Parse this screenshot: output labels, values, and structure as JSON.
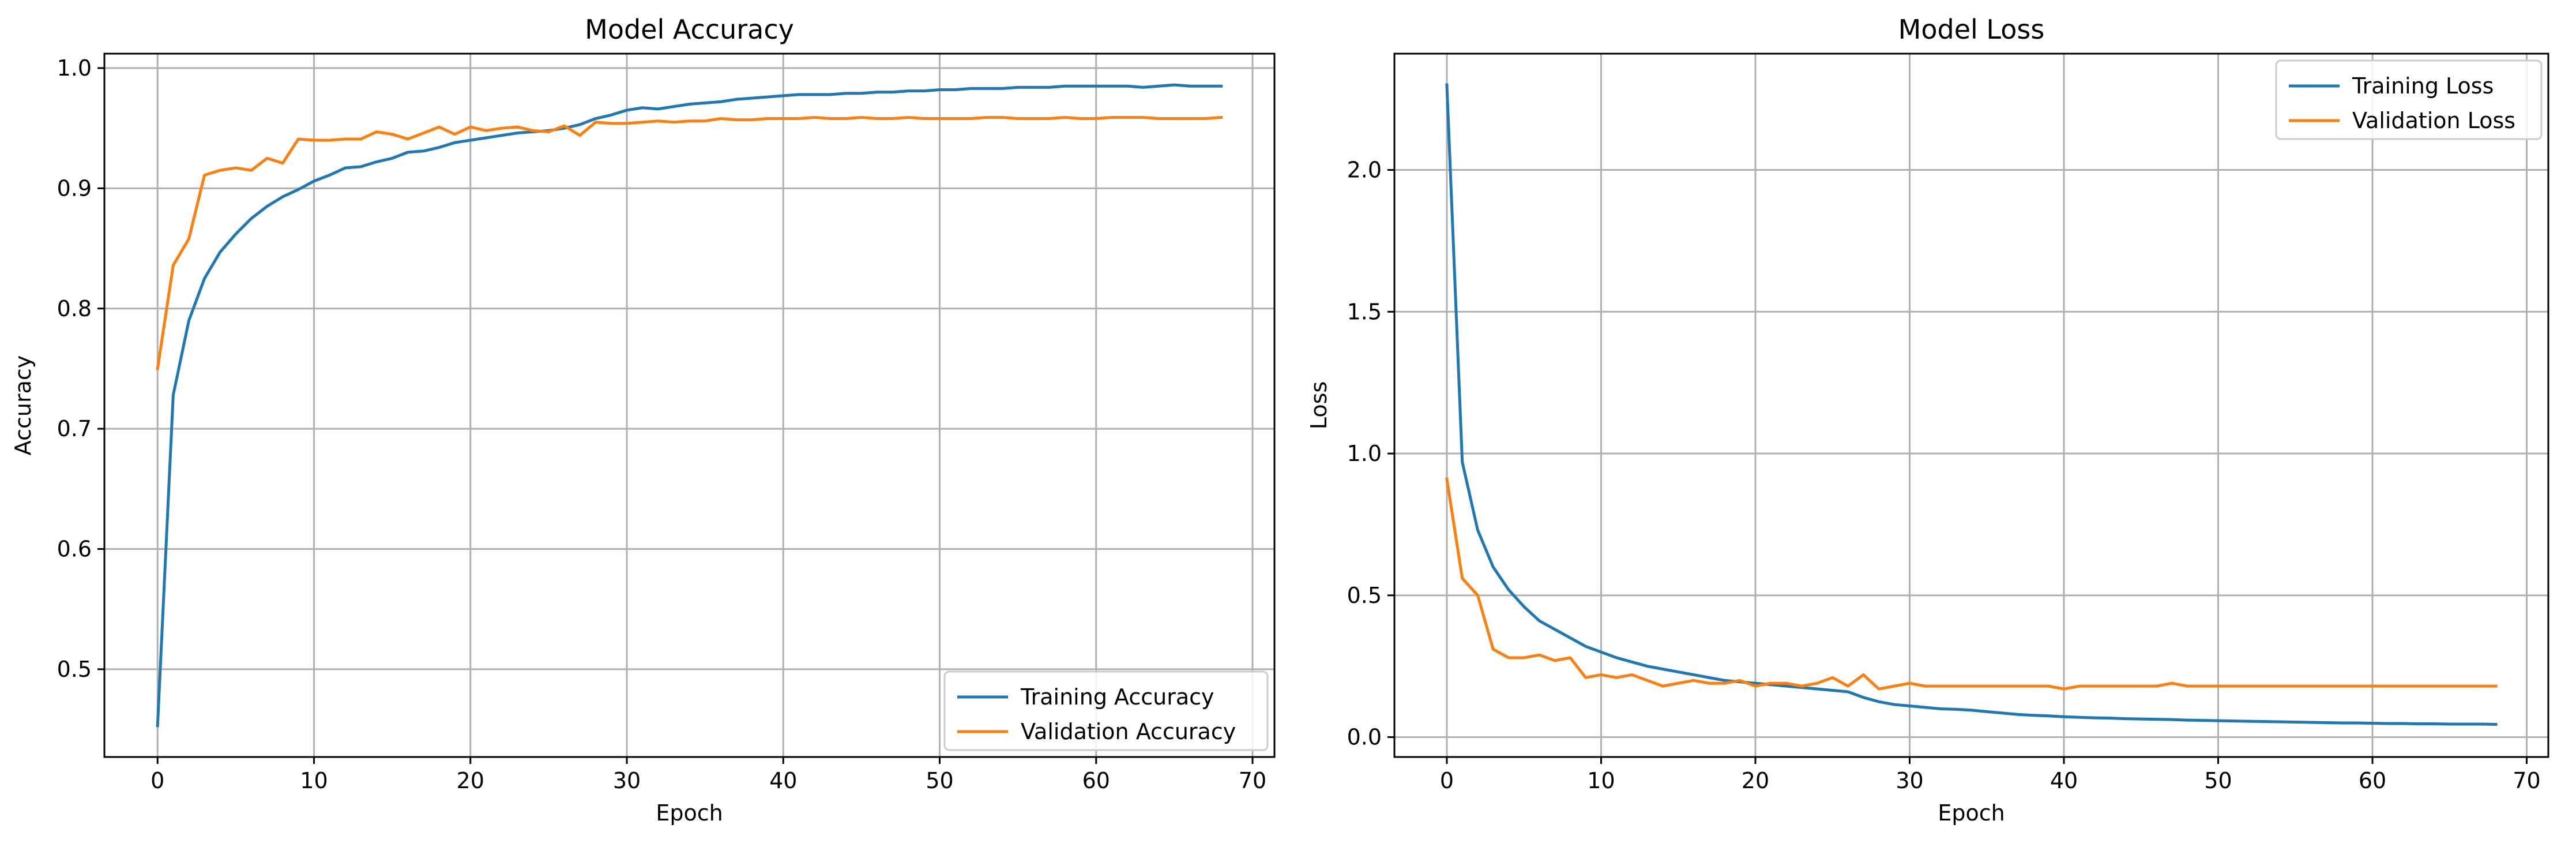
{
  "chart_data": [
    {
      "type": "line",
      "title": "Model Accuracy",
      "xlabel": "Epoch",
      "ylabel": "Accuracy",
      "xlim": [
        -3.4,
        71.4
      ],
      "ylim": [
        0.427,
        1.012
      ],
      "xticks": [
        0,
        10,
        20,
        30,
        40,
        50,
        60,
        70
      ],
      "yticks": [
        0.5,
        0.6,
        0.7,
        0.8,
        0.9,
        1.0
      ],
      "xtick_labels": [
        "0",
        "10",
        "20",
        "30",
        "40",
        "50",
        "60",
        "70"
      ],
      "ytick_labels": [
        "0.5",
        "0.6",
        "0.7",
        "0.8",
        "0.9",
        "1.0"
      ],
      "grid": true,
      "legend_position": "lower right",
      "series": [
        {
          "name": "Training Accuracy",
          "color": "#1f77b4",
          "values": [
            0.453,
            0.728,
            0.79,
            0.825,
            0.847,
            0.862,
            0.875,
            0.885,
            0.893,
            0.899,
            0.906,
            0.911,
            0.917,
            0.918,
            0.922,
            0.925,
            0.93,
            0.931,
            0.934,
            0.938,
            0.94,
            0.942,
            0.944,
            0.946,
            0.947,
            0.948,
            0.95,
            0.953,
            0.958,
            0.961,
            0.965,
            0.967,
            0.966,
            0.968,
            0.97,
            0.971,
            0.972,
            0.974,
            0.975,
            0.976,
            0.977,
            0.978,
            0.978,
            0.978,
            0.979,
            0.979,
            0.98,
            0.98,
            0.981,
            0.981,
            0.982,
            0.982,
            0.983,
            0.983,
            0.983,
            0.984,
            0.984,
            0.984,
            0.985,
            0.985,
            0.985,
            0.985,
            0.985,
            0.984,
            0.985,
            0.986,
            0.985,
            0.985,
            0.985
          ]
        },
        {
          "name": "Validation Accuracy",
          "color": "#ff7f0e",
          "values": [
            0.75,
            0.836,
            0.858,
            0.911,
            0.915,
            0.917,
            0.915,
            0.925,
            0.921,
            0.941,
            0.94,
            0.94,
            0.941,
            0.941,
            0.947,
            0.945,
            0.941,
            0.946,
            0.951,
            0.945,
            0.951,
            0.948,
            0.95,
            0.951,
            0.948,
            0.947,
            0.952,
            0.944,
            0.955,
            0.954,
            0.954,
            0.955,
            0.956,
            0.955,
            0.956,
            0.956,
            0.958,
            0.957,
            0.957,
            0.958,
            0.958,
            0.958,
            0.959,
            0.958,
            0.958,
            0.959,
            0.958,
            0.958,
            0.959,
            0.958,
            0.958,
            0.958,
            0.958,
            0.959,
            0.959,
            0.958,
            0.958,
            0.958,
            0.959,
            0.958,
            0.958,
            0.959,
            0.959,
            0.959,
            0.958,
            0.958,
            0.958,
            0.958,
            0.959
          ]
        }
      ]
    },
    {
      "type": "line",
      "title": "Model Loss",
      "xlabel": "Epoch",
      "ylabel": "Loss",
      "xlim": [
        -3.4,
        71.4
      ],
      "ylim": [
        -0.07,
        2.41
      ],
      "xticks": [
        0,
        10,
        20,
        30,
        40,
        50,
        60,
        70
      ],
      "yticks": [
        0.0,
        0.5,
        1.0,
        1.5,
        2.0
      ],
      "xtick_labels": [
        "0",
        "10",
        "20",
        "30",
        "40",
        "50",
        "60",
        "70"
      ],
      "ytick_labels": [
        "0.0",
        "0.5",
        "1.0",
        "1.5",
        "2.0"
      ],
      "grid": true,
      "legend_position": "upper right",
      "series": [
        {
          "name": "Training Loss",
          "color": "#1f77b4",
          "values": [
            2.3,
            0.97,
            0.73,
            0.6,
            0.52,
            0.46,
            0.41,
            0.38,
            0.35,
            0.32,
            0.3,
            0.28,
            0.265,
            0.25,
            0.24,
            0.23,
            0.22,
            0.21,
            0.2,
            0.195,
            0.19,
            0.185,
            0.18,
            0.175,
            0.17,
            0.165,
            0.16,
            0.14,
            0.125,
            0.115,
            0.11,
            0.105,
            0.1,
            0.098,
            0.095,
            0.09,
            0.085,
            0.08,
            0.077,
            0.075,
            0.072,
            0.07,
            0.068,
            0.067,
            0.065,
            0.064,
            0.063,
            0.062,
            0.06,
            0.059,
            0.058,
            0.057,
            0.056,
            0.055,
            0.054,
            0.053,
            0.052,
            0.051,
            0.05,
            0.05,
            0.049,
            0.048,
            0.048,
            0.047,
            0.047,
            0.046,
            0.046,
            0.046,
            0.045
          ]
        },
        {
          "name": "Validation Loss",
          "color": "#ff7f0e",
          "values": [
            0.91,
            0.56,
            0.5,
            0.31,
            0.28,
            0.28,
            0.29,
            0.27,
            0.28,
            0.21,
            0.22,
            0.21,
            0.22,
            0.2,
            0.18,
            0.19,
            0.2,
            0.19,
            0.19,
            0.2,
            0.18,
            0.19,
            0.19,
            0.18,
            0.19,
            0.21,
            0.18,
            0.22,
            0.17,
            0.18,
            0.19,
            0.18,
            0.18,
            0.18,
            0.18,
            0.18,
            0.18,
            0.18,
            0.18,
            0.18,
            0.17,
            0.18,
            0.18,
            0.18,
            0.18,
            0.18,
            0.18,
            0.19,
            0.18,
            0.18,
            0.18,
            0.18,
            0.18,
            0.18,
            0.18,
            0.18,
            0.18,
            0.18,
            0.18,
            0.18,
            0.18,
            0.18,
            0.18,
            0.18,
            0.18,
            0.18,
            0.18,
            0.18,
            0.18
          ]
        }
      ]
    }
  ]
}
